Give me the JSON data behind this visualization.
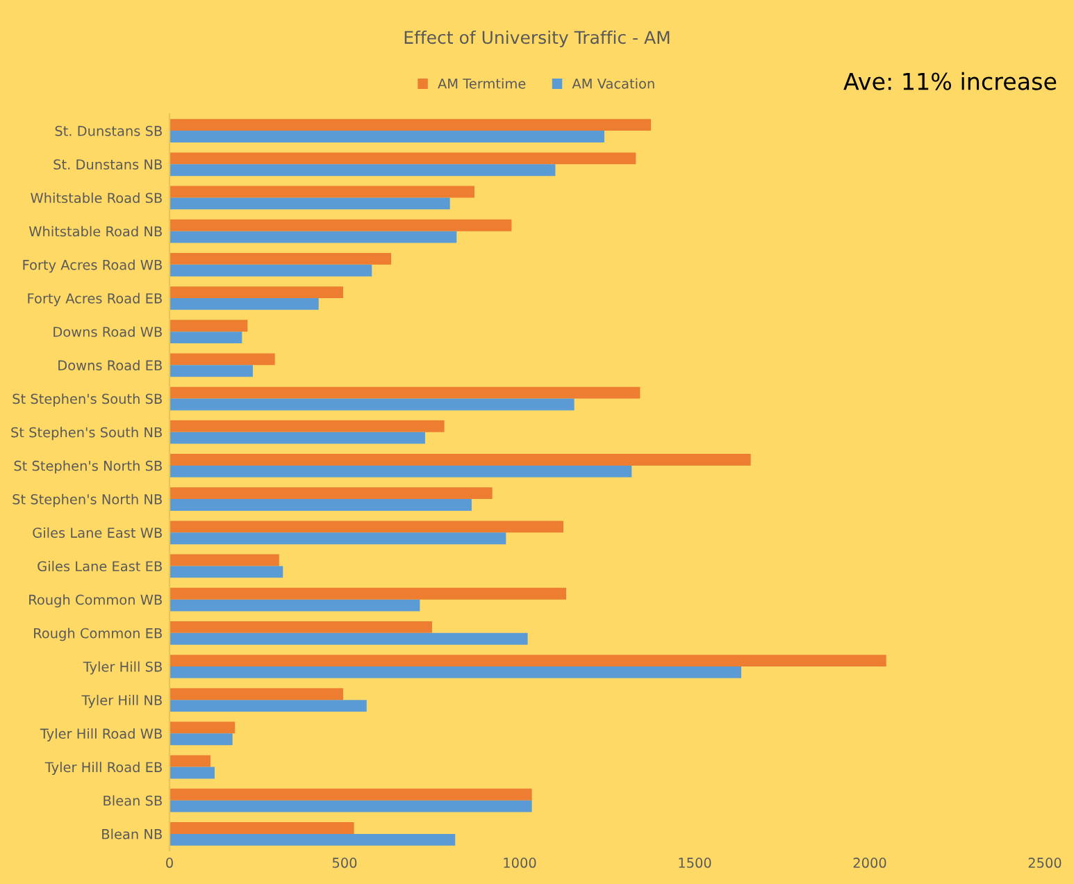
{
  "chart_data": {
    "type": "bar",
    "orientation": "horizontal",
    "title": "Effect of University Traffic - AM",
    "annotations": [
      "Ave: 11% increase"
    ],
    "categories": [
      "St. Dunstans SB",
      "St. Dunstans NB",
      "Whitstable Road SB",
      "Whitstable Road NB",
      "Forty Acres Road WB",
      "Forty Acres Road EB",
      "Downs Road WB",
      "Downs Road EB",
      "St Stephen's South SB",
      "St Stephen's South NB",
      "St Stephen's North SB",
      "St Stephen's North NB",
      "Giles Lane East WB",
      "Giles Lane East EB",
      "Rough Common WB",
      "Rough Common EB",
      "Tyler Hill SB",
      "Tyler Hill NB",
      "Tyler Hill Road WB",
      "Tyler Hill Road EB",
      "Blean SB",
      "Blean NB"
    ],
    "series": [
      {
        "name": "AM Termtime",
        "color": "#ed7d31",
        "values": [
          1375,
          1332,
          871,
          977,
          633,
          496,
          223,
          301,
          1344,
          785,
          1660,
          922,
          1125,
          313,
          1133,
          750,
          2047,
          496,
          187,
          117,
          1035,
          527
        ]
      },
      {
        "name": "AM Vacation",
        "color": "#5b9bd5",
        "values": [
          1242,
          1102,
          801,
          820,
          578,
          426,
          207,
          238,
          1156,
          730,
          1320,
          863,
          961,
          324,
          715,
          1023,
          1633,
          563,
          180,
          129,
          1035,
          816
        ]
      }
    ],
    "xlim": [
      0,
      2500
    ],
    "xticks": [
      0,
      500,
      1000,
      1500,
      2000,
      2500
    ],
    "grid": false,
    "legend": "top"
  }
}
